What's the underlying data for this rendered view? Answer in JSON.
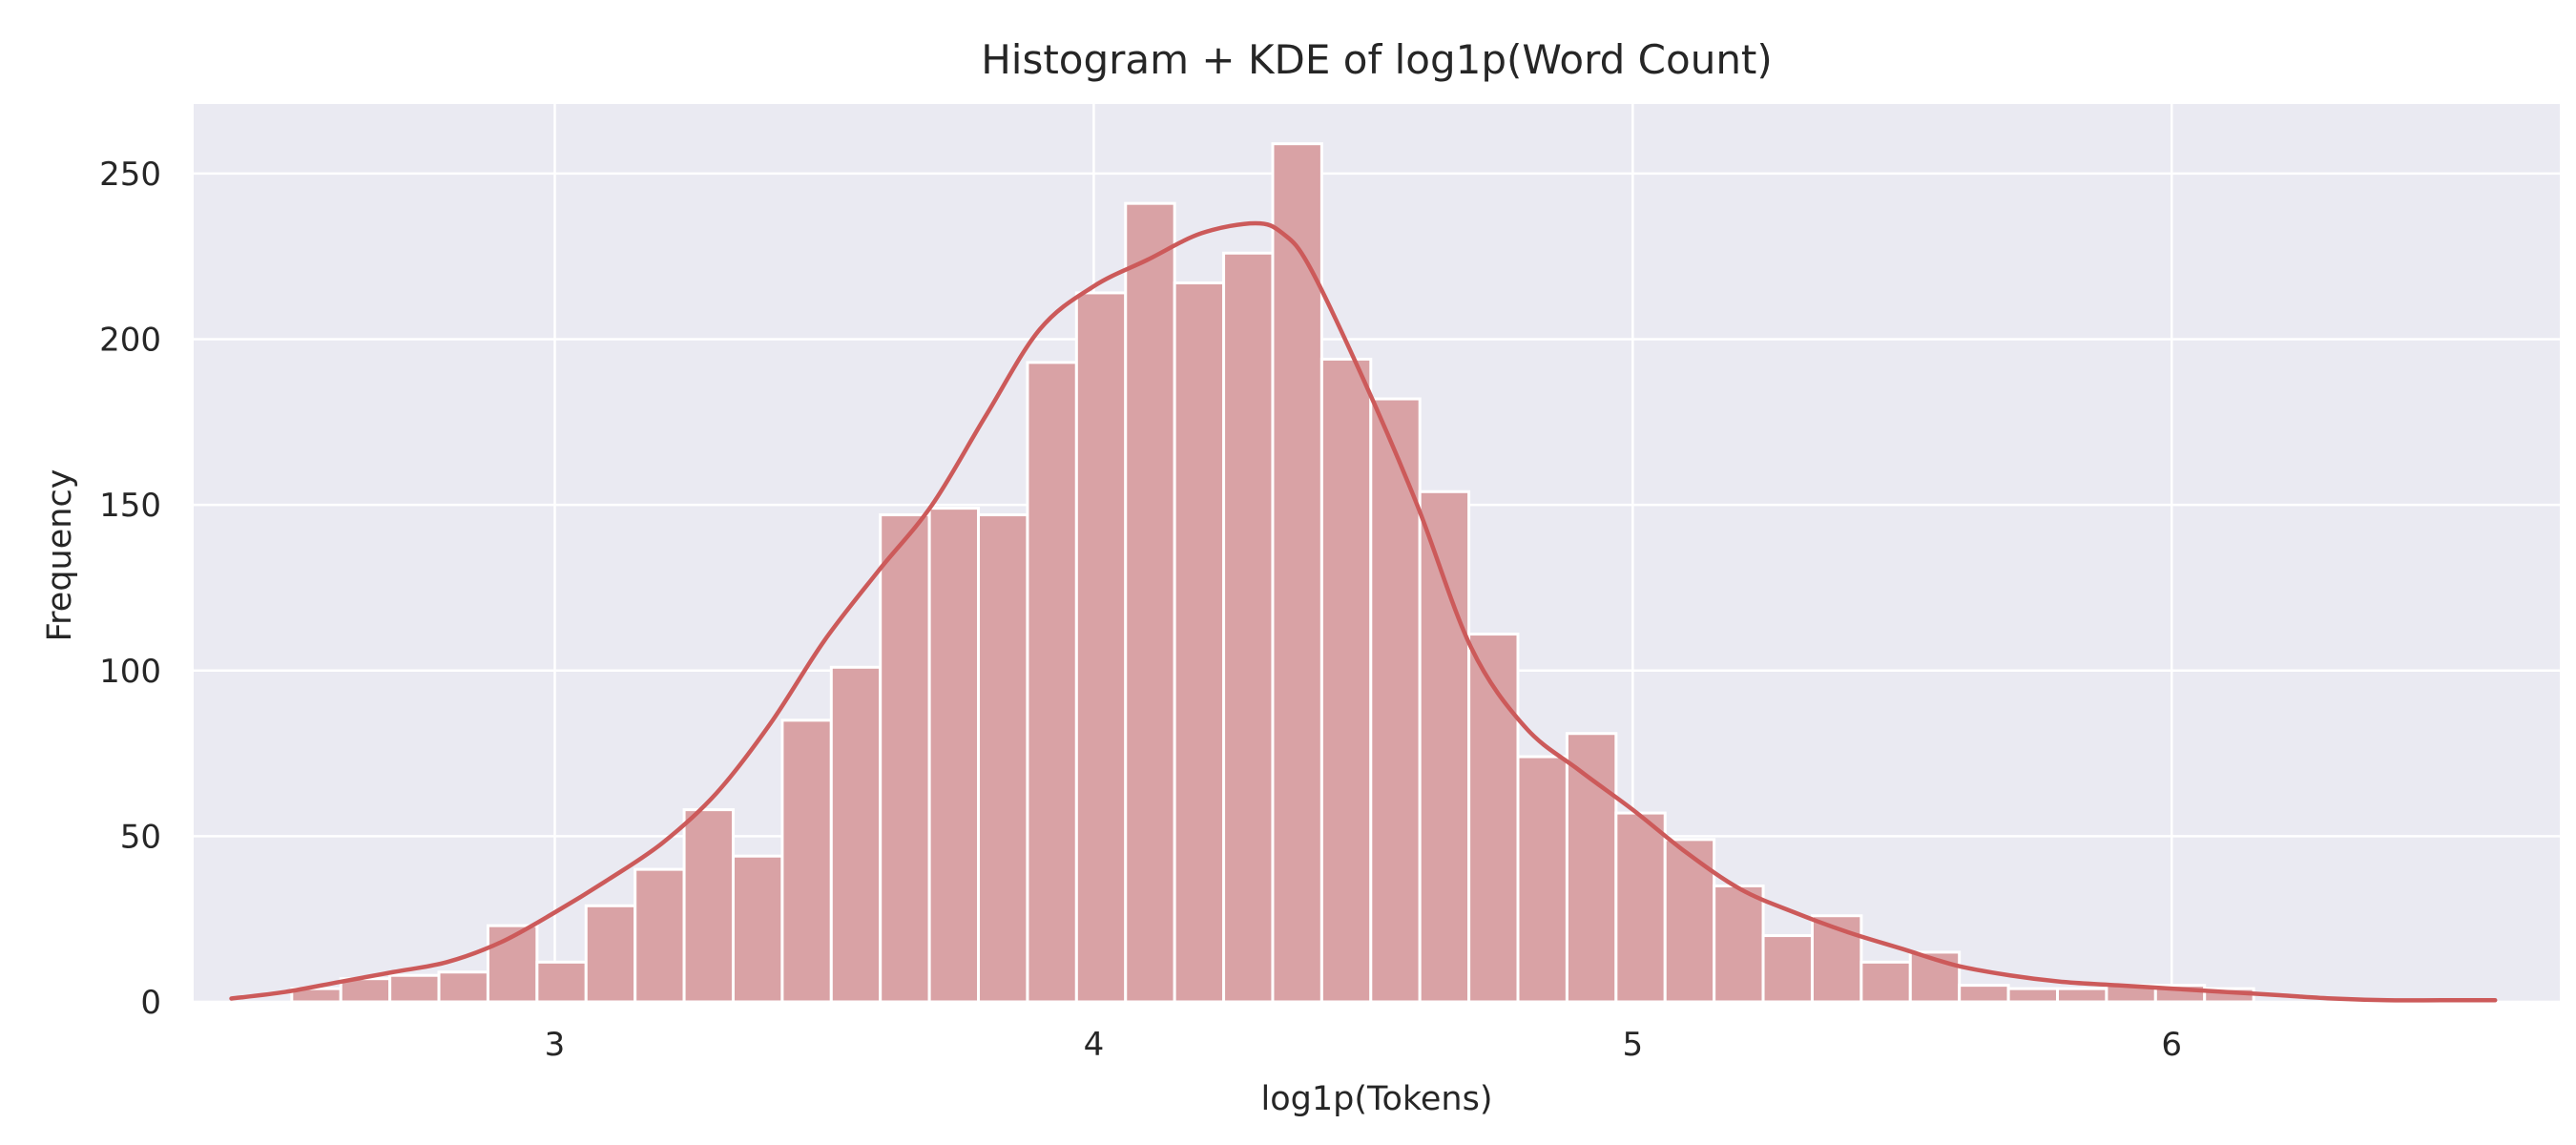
{
  "chart_data": {
    "type": "bar",
    "title": "Histogram + KDE of log1p(Word Count)",
    "xlabel": "log1p(Tokens)",
    "ylabel": "Frequency",
    "xlim": [
      2.33,
      6.72
    ],
    "ylim": [
      0,
      271
    ],
    "xticks": [
      3,
      4,
      5,
      6
    ],
    "yticks": [
      0,
      50,
      100,
      150,
      200,
      250
    ],
    "grid": true,
    "colors": {
      "background": "#eaeaf2",
      "grid": "#ffffff",
      "bar_fill": "#d9a2a5",
      "bar_edge": "#ffffff",
      "kde_line": "#cc5a5a"
    },
    "series": [
      {
        "kind": "histogram",
        "bin_edges": [
          2.512,
          2.603,
          2.694,
          2.785,
          2.876,
          2.967,
          3.058,
          3.149,
          3.24,
          3.331,
          3.422,
          3.513,
          3.604,
          3.695,
          3.786,
          3.877,
          3.968,
          4.059,
          4.15,
          4.241,
          4.332,
          4.423,
          4.514,
          4.605,
          4.696,
          4.787,
          4.878,
          4.969,
          5.06,
          5.151,
          5.242,
          5.333,
          5.424,
          5.515,
          5.606,
          5.697,
          5.788,
          5.879,
          5.97,
          6.061,
          6.152
        ],
        "values": [
          4,
          7,
          8,
          9,
          23,
          12,
          29,
          40,
          58,
          44,
          85,
          101,
          147,
          149,
          147,
          193,
          214,
          241,
          217,
          226,
          259,
          194,
          182,
          154,
          111,
          74,
          81,
          57,
          49,
          35,
          20,
          26,
          12,
          15,
          5,
          4,
          4,
          5,
          5,
          4
        ]
      },
      {
        "kind": "kde",
        "x": [
          2.4,
          2.5,
          2.6,
          2.7,
          2.8,
          2.9,
          3.0,
          3.1,
          3.2,
          3.3,
          3.4,
          3.5,
          3.6,
          3.7,
          3.8,
          3.9,
          4.0,
          4.1,
          4.2,
          4.3,
          4.35,
          4.4,
          4.5,
          4.6,
          4.7,
          4.8,
          4.9,
          5.0,
          5.1,
          5.2,
          5.3,
          5.4,
          5.5,
          5.6,
          5.7,
          5.8,
          5.9,
          6.0,
          6.1,
          6.2,
          6.3,
          6.4,
          6.5,
          6.6
        ],
        "y": [
          1,
          3,
          6,
          9,
          12,
          18,
          27,
          37,
          48,
          63,
          84,
          109,
          130,
          150,
          177,
          203,
          216,
          224,
          232,
          235,
          232,
          222,
          188,
          150,
          107,
          83,
          70,
          58,
          45,
          34,
          27,
          21,
          16,
          11,
          8,
          6,
          5,
          4,
          3,
          2,
          1,
          0.5,
          0.5,
          0.5
        ]
      }
    ]
  }
}
